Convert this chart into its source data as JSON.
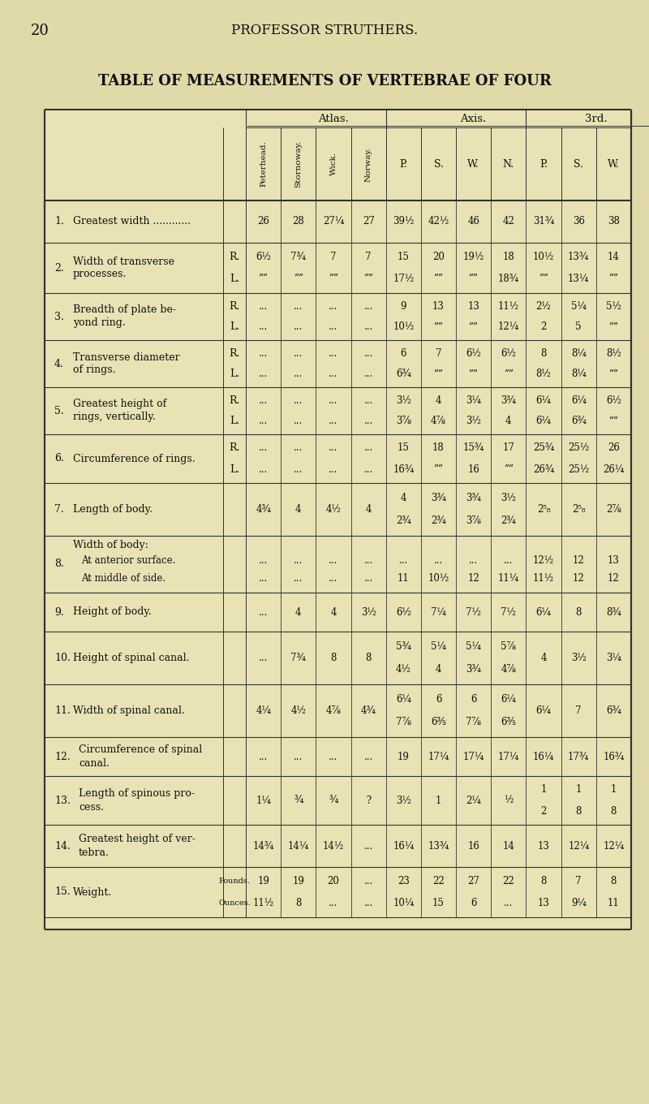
{
  "page_num": "20",
  "page_header": "PROFESSOR STRUTHERS.",
  "title": "TABLE OF MEASUREMENTS OF VERTEBRAE OF FOUR",
  "bg_color": "#e0d9a8",
  "table_bg": "#e8e2b5",
  "header_bg": "#ddd7a5",
  "col_groups": [
    "Atlas.",
    "Axis.",
    "3rd."
  ],
  "atlas_cols": [
    "Peterhead.",
    "Stornoway.",
    "Wick.",
    "Norway."
  ],
  "axis_cols": [
    "P.",
    "S.",
    "W.",
    "N."
  ],
  "third_cols": [
    "P.",
    "S.",
    "W."
  ]
}
